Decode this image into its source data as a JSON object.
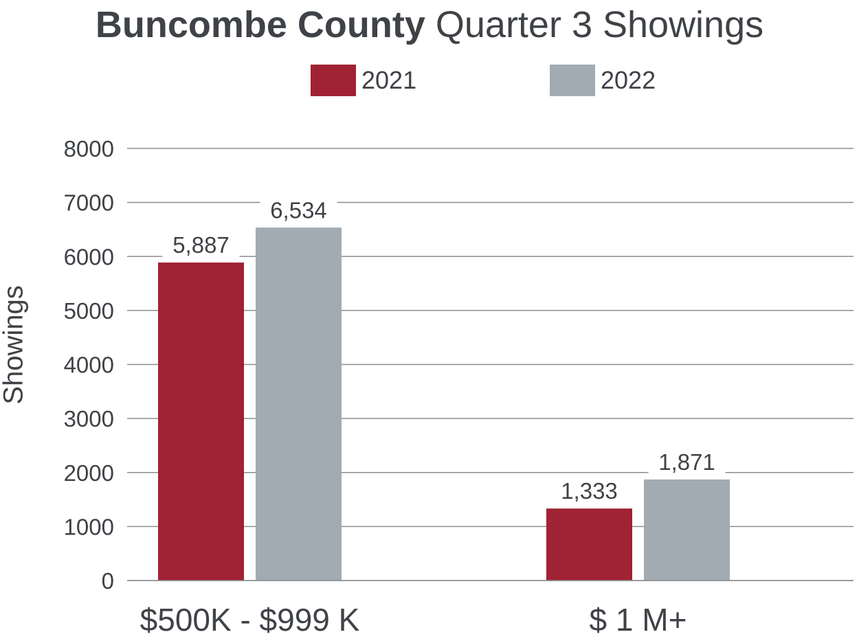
{
  "chart_data": {
    "type": "bar",
    "title_bold": "Buncombe County",
    "title_rest": "Quarter 3 Showings",
    "ylabel": "Showings",
    "xlabel": "",
    "categories": [
      "$500K - $999 K",
      "$ 1 M+"
    ],
    "series": [
      {
        "name": "2021",
        "color": "#a02233",
        "values": [
          5887,
          1333
        ],
        "labels": [
          "5,887",
          "1,333"
        ]
      },
      {
        "name": "2022",
        "color": "#a2abb2",
        "values": [
          6534,
          1871
        ],
        "labels": [
          "6,534",
          "1,871"
        ]
      }
    ],
    "ylim": [
      0,
      8000
    ],
    "yticks": [
      "0",
      "1000",
      "2000",
      "3000",
      "4000",
      "5000",
      "6000",
      "7000",
      "8000"
    ],
    "grid": true,
    "legend_position": "top-center"
  }
}
